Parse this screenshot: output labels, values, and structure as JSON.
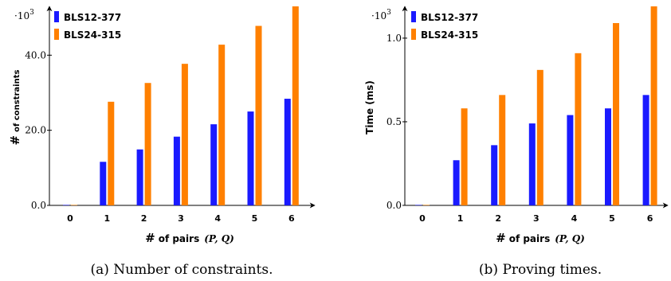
{
  "colors": {
    "series1": "#1a1aff",
    "series2": "#ff8000",
    "axis": "#000000"
  },
  "chart_data": [
    {
      "type": "bar",
      "caption": "(a) Number of constraints.",
      "scale_label": "·10",
      "scale_exponent": "3",
      "categories": [
        "0",
        "1",
        "2",
        "3",
        "4",
        "5",
        "6"
      ],
      "series": [
        {
          "name": "BLS12-377",
          "values": [
            0,
            11.6,
            14.9,
            18.3,
            21.6,
            25.0,
            28.4
          ]
        },
        {
          "name": "BLS24-315",
          "values": [
            0,
            27.6,
            32.6,
            37.7,
            42.8,
            47.8,
            53.0
          ]
        }
      ],
      "yticks": [
        0,
        20,
        40
      ],
      "ytick_labels": [
        "0.0",
        "20.0",
        "40.0"
      ],
      "ylim": [
        0,
        53
      ],
      "xlabel": "# of pairs",
      "xlabel_math": "(P, Q)",
      "ylabel_main": "#",
      "ylabel_small": "of constraints",
      "legend_position": "top-left",
      "grid": false
    },
    {
      "type": "bar",
      "caption": "(b) Proving times.",
      "scale_label": "·10",
      "scale_exponent": "3",
      "categories": [
        "0",
        "1",
        "2",
        "3",
        "4",
        "5",
        "6"
      ],
      "series": [
        {
          "name": "BLS12-377",
          "values": [
            0,
            0.27,
            0.36,
            0.49,
            0.54,
            0.58,
            0.66
          ]
        },
        {
          "name": "BLS24-315",
          "values": [
            0,
            0.58,
            0.66,
            0.81,
            0.91,
            1.09,
            1.19
          ]
        }
      ],
      "yticks": [
        0,
        0.5,
        1.0
      ],
      "ytick_labels": [
        "0.0",
        "0.5",
        "1.0"
      ],
      "ylim": [
        0,
        1.19
      ],
      "xlabel": "# of pairs",
      "xlabel_math": "(P, Q)",
      "ylabel_main": "Time (ms)",
      "ylabel_small": "",
      "legend_position": "top-left",
      "grid": false
    }
  ]
}
